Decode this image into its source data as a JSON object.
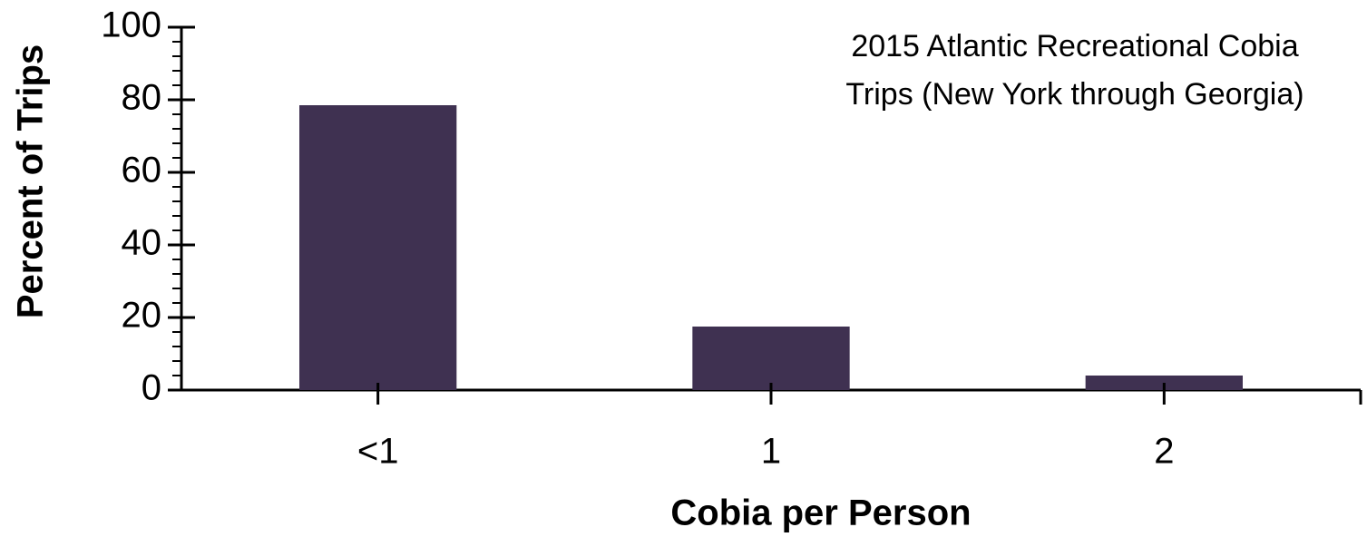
{
  "chart_data": {
    "type": "bar",
    "title": [
      "2015 Atlantic Recreational  Cobia",
      "Trips (New York through Georgia)"
    ],
    "x_label": "Cobia per Person",
    "y_label": "Percent of Trips",
    "categories": [
      "<1",
      "1",
      "2"
    ],
    "values": [
      78.5,
      17.5,
      4
    ],
    "color": "#3f3151",
    "ylim": [
      0,
      100
    ],
    "yticks": [
      0,
      20,
      40,
      60,
      80,
      100
    ],
    "yminorticks": [
      4,
      8,
      12,
      16,
      24,
      28,
      32,
      36,
      44,
      48,
      52,
      56,
      64,
      68,
      72,
      76,
      84,
      88,
      92,
      96
    ],
    "grid": false
  }
}
